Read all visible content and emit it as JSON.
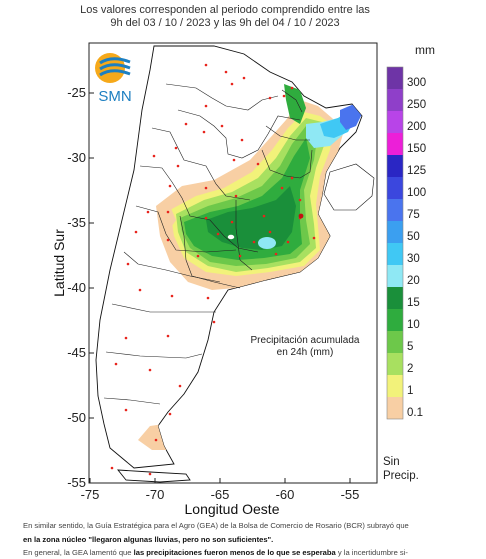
{
  "header": {
    "line1": "Los valores corresponden al periodo comprendido entre las",
    "line2": "9h del 03 / 10 / 2023  y las 9h del 04 / 10 / 2023"
  },
  "logo": {
    "text": "SMN"
  },
  "map": {
    "annotation_line1": "Precipitación acumulada",
    "annotation_line2": "en 24h (mm)",
    "x_axis_label": "Longitud Oeste",
    "y_axis_label": "Latitud Sur",
    "x_ticks": [
      "-75",
      "-70",
      "-65",
      "-60",
      "-55"
    ],
    "y_ticks": [
      "-25",
      "-30",
      "-35",
      "-40",
      "-45",
      "-50",
      "-55"
    ]
  },
  "legend": {
    "unit": "mm",
    "thresholds": [
      "300",
      "250",
      "200",
      "150",
      "125",
      "100",
      "75",
      "50",
      "30",
      "20",
      "15",
      "10",
      "5",
      "2",
      "1",
      "0.1"
    ],
    "colors": [
      "#6e34a6",
      "#8f3fc9",
      "#b844e8",
      "#ec1fd8",
      "#2a26c4",
      "#3b47de",
      "#4a74ee",
      "#3b9ff0",
      "#40c8f4",
      "#8fe8f4",
      "#1a8f3a",
      "#2fac3e",
      "#6dc84a",
      "#a8e060",
      "#f2f27a",
      "#f8cfa4"
    ],
    "no_rain_line1": "Sin",
    "no_rain_line2": "Precip."
  },
  "caption": {
    "line1": "En similar sentido, la Guía Estratégica para el Agro (GEA) de la Bolsa de Comercio de Rosario (BCR) subrayó que",
    "line2_bold": "en la zona núcleo \"llegaron algunas lluvias, pero no son suficientes\".",
    "line3_pre": "En general, la GEA lamentó que ",
    "line3_bold": "las precipitaciones fueron menos de lo que se esperaba",
    "line3_post": " y la incertidumbre si-"
  }
}
